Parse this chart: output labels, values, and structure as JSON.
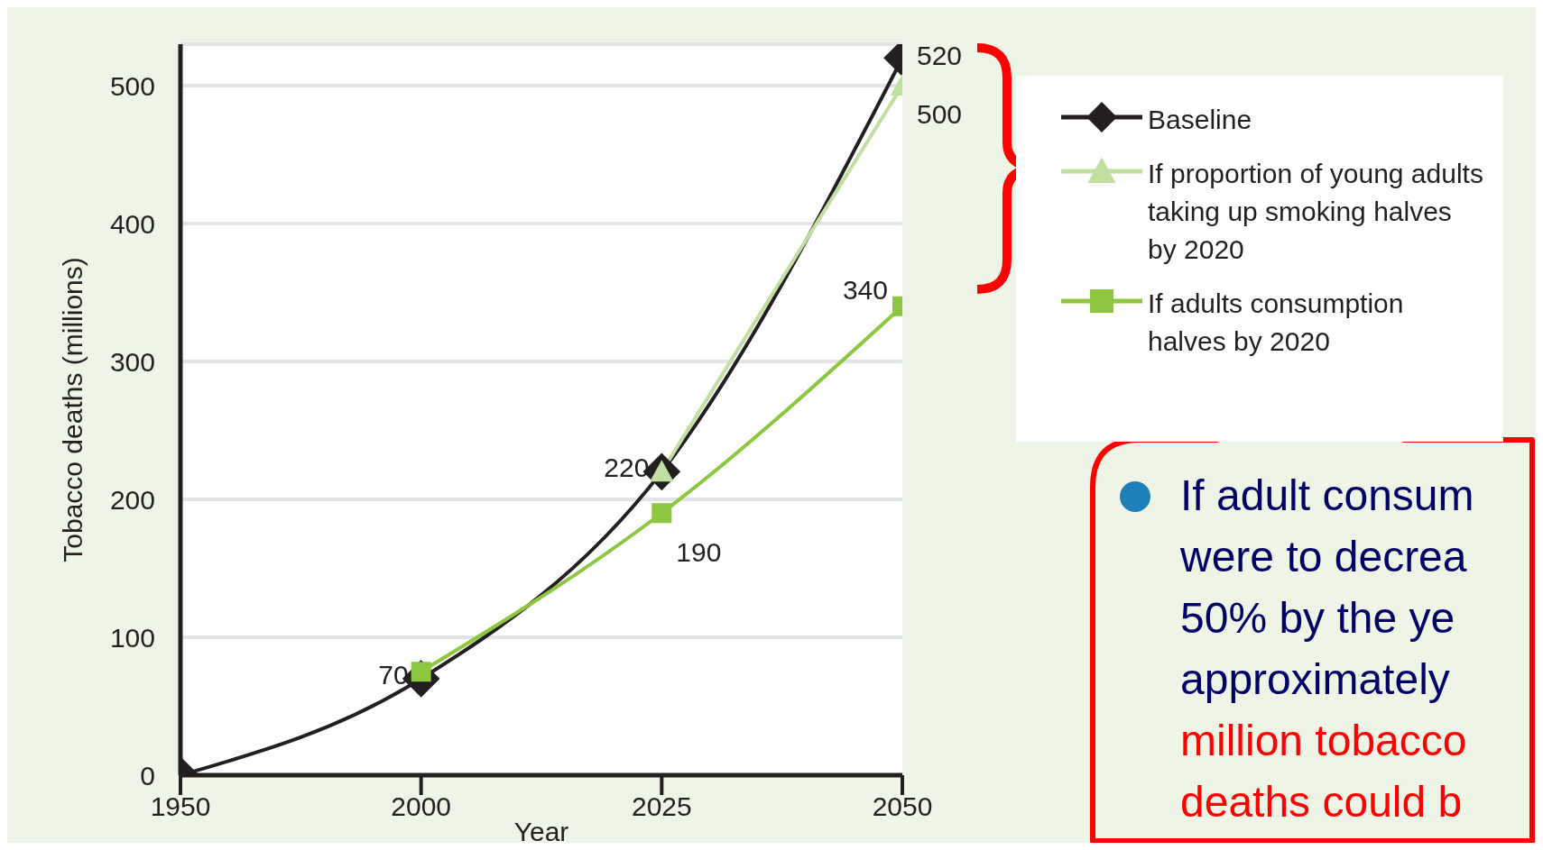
{
  "chart_data": {
    "type": "line",
    "xlabel": "Year",
    "ylabel": "Tobacco deaths (millions)",
    "categories": [
      "1950",
      "2000",
      "2025",
      "2050"
    ],
    "series": [
      {
        "name": "Baseline",
        "color": "#231f20",
        "marker": "diamond",
        "values": [
          0,
          70,
          220,
          520
        ],
        "value_labels": [
          null,
          "70",
          "220",
          "520"
        ]
      },
      {
        "name": "If proportion of young adults taking up smoking halves by 2020",
        "color": "#c2dfa2",
        "marker": "triangle",
        "values": [
          null,
          null,
          220,
          500
        ],
        "value_labels": [
          null,
          null,
          null,
          "500"
        ]
      },
      {
        "name": "If adults consumption halves by 2020",
        "color": "#8dc63f",
        "marker": "square",
        "values": [
          null,
          75,
          190,
          340
        ],
        "value_labels": [
          null,
          null,
          "190",
          "340"
        ]
      }
    ],
    "ylim": [
      0,
      530
    ],
    "yticks": [
      0,
      100,
      200,
      300,
      400,
      500
    ],
    "grid": "y",
    "legend": "right",
    "annotations": [
      "If adult consum\nwere to decrea\n50% by the ye\napproximately",
      "million tobacco\ndeaths could b"
    ]
  }
}
